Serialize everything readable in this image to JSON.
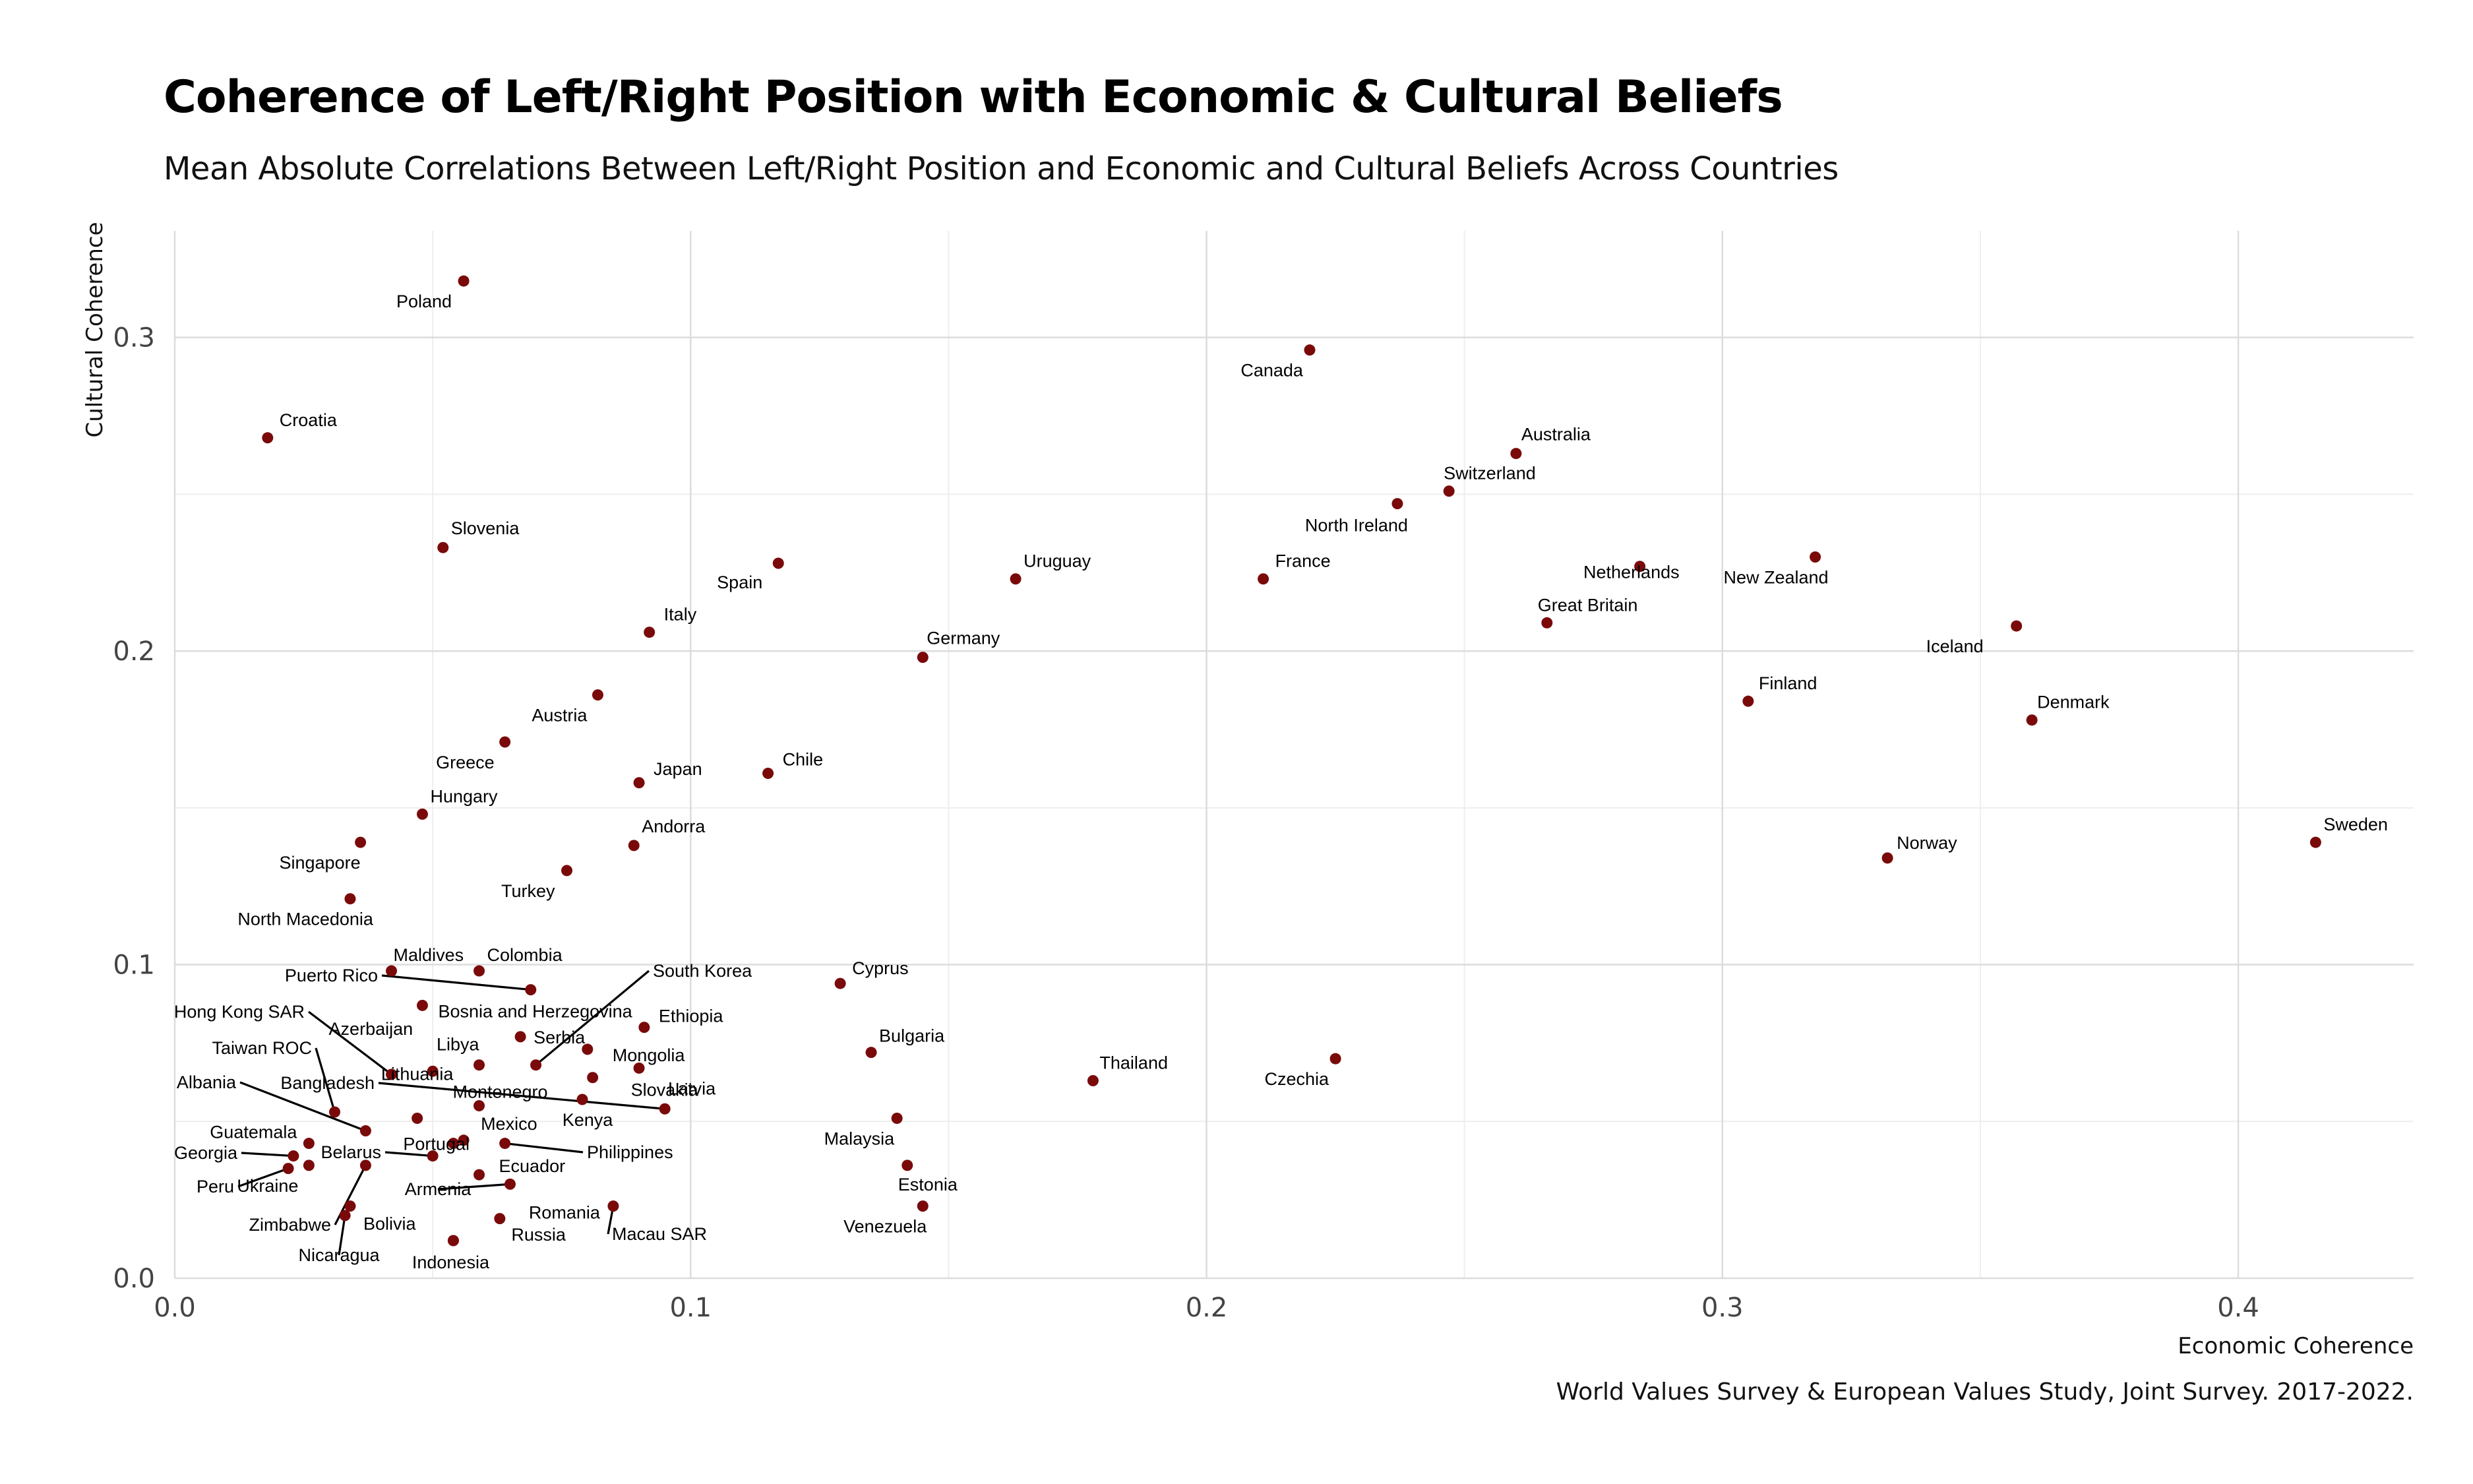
{
  "chart_data": {
    "type": "scatter",
    "title": "Coherence of Left/Right Position with Economic & Cultural Beliefs",
    "subtitle": "Mean Absolute Correlations Between Left/Right Position and Economic and Cultural Beliefs Across Countries",
    "caption": "World Values Survey & European Values Study, Joint Survey. 2017-2022.",
    "xlabel": "Economic Coherence",
    "ylabel": "Cultural Coherence",
    "xlim": [
      0,
      0.434
    ],
    "ylim": [
      0,
      0.334
    ],
    "xticks": [
      0.0,
      0.1,
      0.2,
      0.3,
      0.4
    ],
    "yticks": [
      0.0,
      0.1,
      0.2,
      0.3
    ],
    "xtick_labels": [
      "0.0",
      "0.1",
      "0.2",
      "0.3",
      "0.4"
    ],
    "ytick_labels": [
      "0.0",
      "0.1",
      "0.2",
      "0.3"
    ],
    "grid": true,
    "point_color": "#7a0a0a",
    "points": [
      {
        "label": "Poland",
        "x": 0.056,
        "y": 0.318
      },
      {
        "label": "Canada",
        "x": 0.22,
        "y": 0.296
      },
      {
        "label": "Croatia",
        "x": 0.018,
        "y": 0.268
      },
      {
        "label": "Australia",
        "x": 0.26,
        "y": 0.263
      },
      {
        "label": "Switzerland",
        "x": 0.247,
        "y": 0.251
      },
      {
        "label": "North Ireland",
        "x": 0.237,
        "y": 0.247
      },
      {
        "label": "Slovenia",
        "x": 0.052,
        "y": 0.233
      },
      {
        "label": "Spain",
        "x": 0.117,
        "y": 0.228
      },
      {
        "label": "Uruguay",
        "x": 0.163,
        "y": 0.223
      },
      {
        "label": "France",
        "x": 0.211,
        "y": 0.223
      },
      {
        "label": "Netherlands",
        "x": 0.284,
        "y": 0.227
      },
      {
        "label": "New Zealand",
        "x": 0.318,
        "y": 0.23
      },
      {
        "label": "Great Britain",
        "x": 0.266,
        "y": 0.209
      },
      {
        "label": "Iceland",
        "x": 0.357,
        "y": 0.208
      },
      {
        "label": "Italy",
        "x": 0.092,
        "y": 0.206
      },
      {
        "label": "Germany",
        "x": 0.145,
        "y": 0.198
      },
      {
        "label": "Finland",
        "x": 0.305,
        "y": 0.184
      },
      {
        "label": "Denmark",
        "x": 0.36,
        "y": 0.178
      },
      {
        "label": "Austria",
        "x": 0.082,
        "y": 0.186
      },
      {
        "label": "Greece",
        "x": 0.064,
        "y": 0.171
      },
      {
        "label": "Japan",
        "x": 0.09,
        "y": 0.158
      },
      {
        "label": "Chile",
        "x": 0.115,
        "y": 0.161
      },
      {
        "label": "Hungary",
        "x": 0.048,
        "y": 0.148
      },
      {
        "label": "Singapore",
        "x": 0.036,
        "y": 0.139
      },
      {
        "label": "Andorra",
        "x": 0.089,
        "y": 0.138
      },
      {
        "label": "Turkey",
        "x": 0.076,
        "y": 0.13
      },
      {
        "label": "Norway",
        "x": 0.332,
        "y": 0.134
      },
      {
        "label": "Sweden",
        "x": 0.415,
        "y": 0.139
      },
      {
        "label": "North Macedonia",
        "x": 0.034,
        "y": 0.121
      },
      {
        "label": "Maldives",
        "x": 0.042,
        "y": 0.098
      },
      {
        "label": "Colombia",
        "x": 0.059,
        "y": 0.098
      },
      {
        "label": "Cyprus",
        "x": 0.129,
        "y": 0.094
      },
      {
        "label": "Puerto Rico",
        "x": 0.069,
        "y": 0.092
      },
      {
        "label": "South Korea",
        "x": 0.07,
        "y": 0.068
      },
      {
        "label": "Bosnia and Herzegovina",
        "x": 0.048,
        "y": 0.087
      },
      {
        "label": "Ethiopia",
        "x": 0.091,
        "y": 0.08
      },
      {
        "label": "Hong Kong SAR",
        "x": 0.042,
        "y": 0.065
      },
      {
        "label": "Azerbaijan",
        "x": 0.05,
        "y": 0.066
      },
      {
        "label": "Libya",
        "x": 0.059,
        "y": 0.068
      },
      {
        "label": "Serbia",
        "x": 0.067,
        "y": 0.077
      },
      {
        "label": "Mongolia",
        "x": 0.08,
        "y": 0.073
      },
      {
        "label": "Bulgaria",
        "x": 0.135,
        "y": 0.072
      },
      {
        "label": "Thailand",
        "x": 0.178,
        "y": 0.063
      },
      {
        "label": "Czechia",
        "x": 0.225,
        "y": 0.07
      },
      {
        "label": "Taiwan ROC",
        "x": 0.031,
        "y": 0.053
      },
      {
        "label": "Lithuania",
        "x": 0.047,
        "y": 0.051
      },
      {
        "label": "Slovakia",
        "x": 0.081,
        "y": 0.064
      },
      {
        "label": "Montenegro",
        "x": 0.059,
        "y": 0.055
      },
      {
        "label": "Kenya",
        "x": 0.079,
        "y": 0.057
      },
      {
        "label": "Latvia",
        "x": 0.09,
        "y": 0.067
      },
      {
        "label": "Albania",
        "x": 0.037,
        "y": 0.047
      },
      {
        "label": "Bangladesh",
        "x": 0.095,
        "y": 0.054
      },
      {
        "label": "Portugal",
        "x": 0.054,
        "y": 0.043
      },
      {
        "label": "Malaysia",
        "x": 0.14,
        "y": 0.051
      },
      {
        "label": "Guatemala",
        "x": 0.026,
        "y": 0.043
      },
      {
        "label": "Mexico",
        "x": 0.056,
        "y": 0.044
      },
      {
        "label": "Philippines",
        "x": 0.064,
        "y": 0.043
      },
      {
        "label": "Georgia",
        "x": 0.023,
        "y": 0.039
      },
      {
        "label": "Belarus",
        "x": 0.05,
        "y": 0.039
      },
      {
        "label": "Peru",
        "x": 0.022,
        "y": 0.035
      },
      {
        "label": "Ukraine",
        "x": 0.026,
        "y": 0.036
      },
      {
        "label": "Zimbabwe",
        "x": 0.037,
        "y": 0.036
      },
      {
        "label": "Ecuador",
        "x": 0.059,
        "y": 0.033
      },
      {
        "label": "Armenia",
        "x": 0.065,
        "y": 0.03
      },
      {
        "label": "Estonia",
        "x": 0.142,
        "y": 0.036
      },
      {
        "label": "Bolivia",
        "x": 0.034,
        "y": 0.023
      },
      {
        "label": "Nicaragua",
        "x": 0.033,
        "y": 0.02
      },
      {
        "label": "Romania",
        "x": 0.063,
        "y": 0.019
      },
      {
        "label": "Macau SAR",
        "x": 0.085,
        "y": 0.023
      },
      {
        "label": "Venezuela",
        "x": 0.145,
        "y": 0.023
      },
      {
        "label": "Indonesia",
        "x": 0.054,
        "y": 0.012
      },
      {
        "label": "Russia",
        "x": 0.054,
        "y": 0.012
      }
    ]
  }
}
